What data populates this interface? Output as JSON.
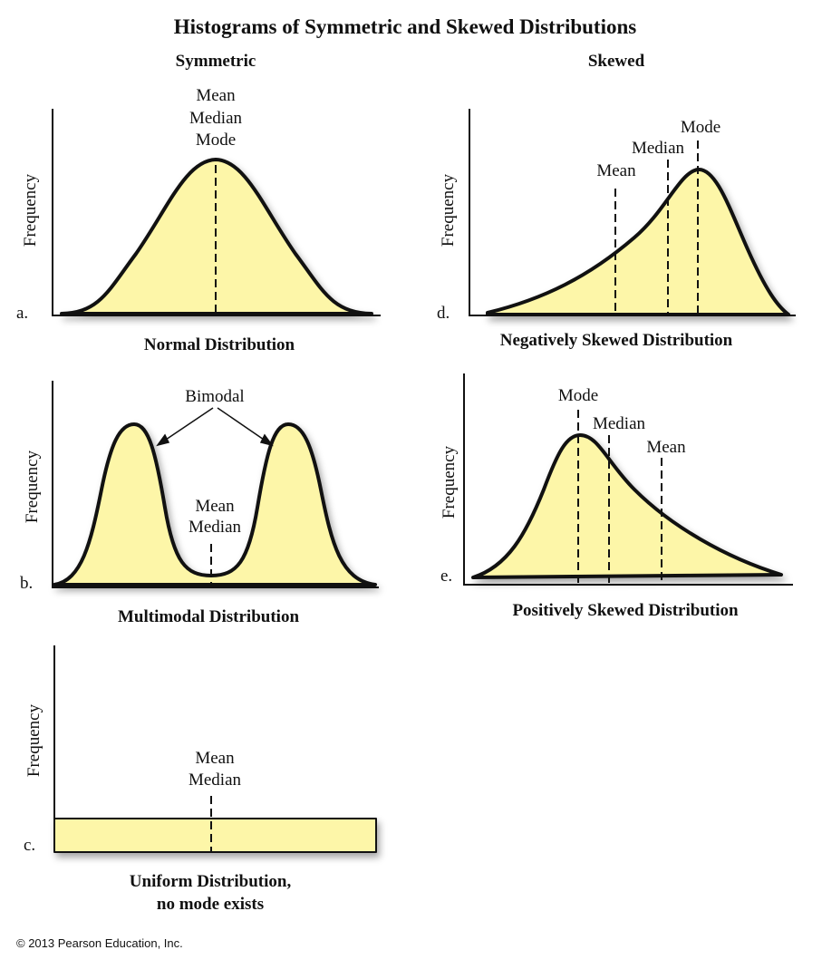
{
  "title": "Histograms of Symmetric and Skewed Distributions",
  "headers": {
    "symmetric": "Symmetric",
    "skewed": "Skewed"
  },
  "fill_color": "#fdf6a8",
  "y_axis_label": "Frequency",
  "panels": {
    "a": {
      "letter": "a.",
      "caption": "Normal Distribution",
      "labels": [
        "Mean",
        "Median",
        "Mode"
      ]
    },
    "b": {
      "letter": "b.",
      "caption": "Multimodal Distribution",
      "bimodal": "Bimodal",
      "labels": [
        "Mean",
        "Median"
      ]
    },
    "c": {
      "letter": "c.",
      "caption_line1": "Uniform Distribution,",
      "caption_line2": "no mode exists",
      "labels": [
        "Mean",
        "Median"
      ]
    },
    "d": {
      "letter": "d.",
      "caption": "Negatively Skewed Distribution",
      "mean": "Mean",
      "median": "Median",
      "mode": "Mode"
    },
    "e": {
      "letter": "e.",
      "caption": "Positively Skewed Distribution",
      "mean": "Mean",
      "median": "Median",
      "mode": "Mode"
    }
  },
  "copyright": "© 2013 Pearson Education, Inc."
}
